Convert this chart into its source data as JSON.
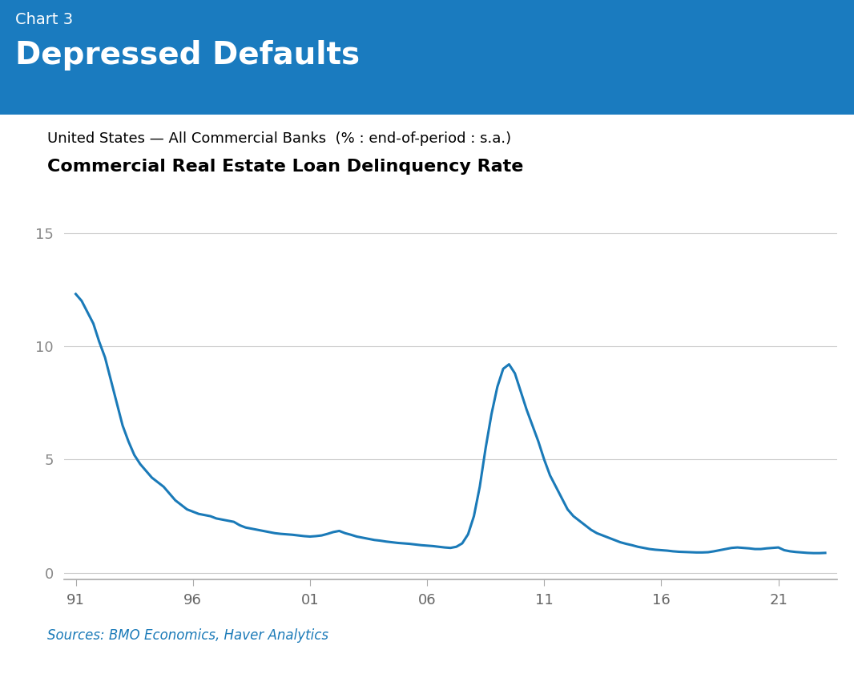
{
  "header_bg_color": "#1a7bbf",
  "header_label": "Chart 3",
  "header_title": "Depressed Defaults",
  "subtitle1": "United States — All Commercial Banks  (% : end-of-period : s.a.)",
  "subtitle2": "Commercial Real Estate Loan Delinquency Rate",
  "source_text": "Sources: BMO Economics, Haver Analytics",
  "line_color": "#1a7ab8",
  "line_width": 2.2,
  "yticks": [
    0,
    5,
    10,
    15
  ],
  "xticks": [
    1991,
    1996,
    2001,
    2006,
    2011,
    2016,
    2021
  ],
  "xtick_labels": [
    "91",
    "96",
    "01",
    "06",
    "11",
    "16",
    "21"
  ],
  "ylim": [
    -0.3,
    16.5
  ],
  "xlim": [
    1990.5,
    2023.5
  ],
  "years": [
    1991.0,
    1991.25,
    1991.5,
    1991.75,
    1992.0,
    1992.25,
    1992.5,
    1992.75,
    1993.0,
    1993.25,
    1993.5,
    1993.75,
    1994.0,
    1994.25,
    1994.5,
    1994.75,
    1995.0,
    1995.25,
    1995.5,
    1995.75,
    1996.0,
    1996.25,
    1996.5,
    1996.75,
    1997.0,
    1997.25,
    1997.5,
    1997.75,
    1998.0,
    1998.25,
    1998.5,
    1998.75,
    1999.0,
    1999.25,
    1999.5,
    1999.75,
    2000.0,
    2000.25,
    2000.5,
    2000.75,
    2001.0,
    2001.25,
    2001.5,
    2001.75,
    2002.0,
    2002.25,
    2002.5,
    2002.75,
    2003.0,
    2003.25,
    2003.5,
    2003.75,
    2004.0,
    2004.25,
    2004.5,
    2004.75,
    2005.0,
    2005.25,
    2005.5,
    2005.75,
    2006.0,
    2006.25,
    2006.5,
    2006.75,
    2007.0,
    2007.25,
    2007.5,
    2007.75,
    2008.0,
    2008.25,
    2008.5,
    2008.75,
    2009.0,
    2009.25,
    2009.5,
    2009.75,
    2010.0,
    2010.25,
    2010.5,
    2010.75,
    2011.0,
    2011.25,
    2011.5,
    2011.75,
    2012.0,
    2012.25,
    2012.5,
    2012.75,
    2013.0,
    2013.25,
    2013.5,
    2013.75,
    2014.0,
    2014.25,
    2014.5,
    2014.75,
    2015.0,
    2015.25,
    2015.5,
    2015.75,
    2016.0,
    2016.25,
    2016.5,
    2016.75,
    2017.0,
    2017.25,
    2017.5,
    2017.75,
    2018.0,
    2018.25,
    2018.5,
    2018.75,
    2019.0,
    2019.25,
    2019.5,
    2019.75,
    2020.0,
    2020.25,
    2020.5,
    2020.75,
    2021.0,
    2021.25,
    2021.5,
    2021.75,
    2022.0,
    2022.25,
    2022.5,
    2022.75,
    2023.0
  ],
  "values": [
    12.3,
    12.0,
    11.5,
    11.0,
    10.2,
    9.5,
    8.5,
    7.5,
    6.5,
    5.8,
    5.2,
    4.8,
    4.5,
    4.2,
    4.0,
    3.8,
    3.5,
    3.2,
    3.0,
    2.8,
    2.7,
    2.6,
    2.55,
    2.5,
    2.4,
    2.35,
    2.3,
    2.25,
    2.1,
    2.0,
    1.95,
    1.9,
    1.85,
    1.8,
    1.75,
    1.72,
    1.7,
    1.68,
    1.65,
    1.62,
    1.6,
    1.62,
    1.65,
    1.72,
    1.8,
    1.85,
    1.75,
    1.68,
    1.6,
    1.55,
    1.5,
    1.45,
    1.42,
    1.38,
    1.35,
    1.32,
    1.3,
    1.28,
    1.25,
    1.22,
    1.2,
    1.18,
    1.15,
    1.12,
    1.1,
    1.15,
    1.3,
    1.7,
    2.5,
    3.8,
    5.5,
    7.0,
    8.2,
    9.0,
    9.2,
    8.8,
    8.0,
    7.2,
    6.5,
    5.8,
    5.0,
    4.3,
    3.8,
    3.3,
    2.8,
    2.5,
    2.3,
    2.1,
    1.9,
    1.75,
    1.65,
    1.55,
    1.45,
    1.35,
    1.28,
    1.22,
    1.15,
    1.1,
    1.05,
    1.02,
    1.0,
    0.98,
    0.95,
    0.93,
    0.92,
    0.91,
    0.9,
    0.9,
    0.91,
    0.95,
    1.0,
    1.05,
    1.1,
    1.12,
    1.1,
    1.08,
    1.05,
    1.05,
    1.08,
    1.1,
    1.12,
    1.0,
    0.95,
    0.92,
    0.9,
    0.88,
    0.87,
    0.87,
    0.88
  ]
}
